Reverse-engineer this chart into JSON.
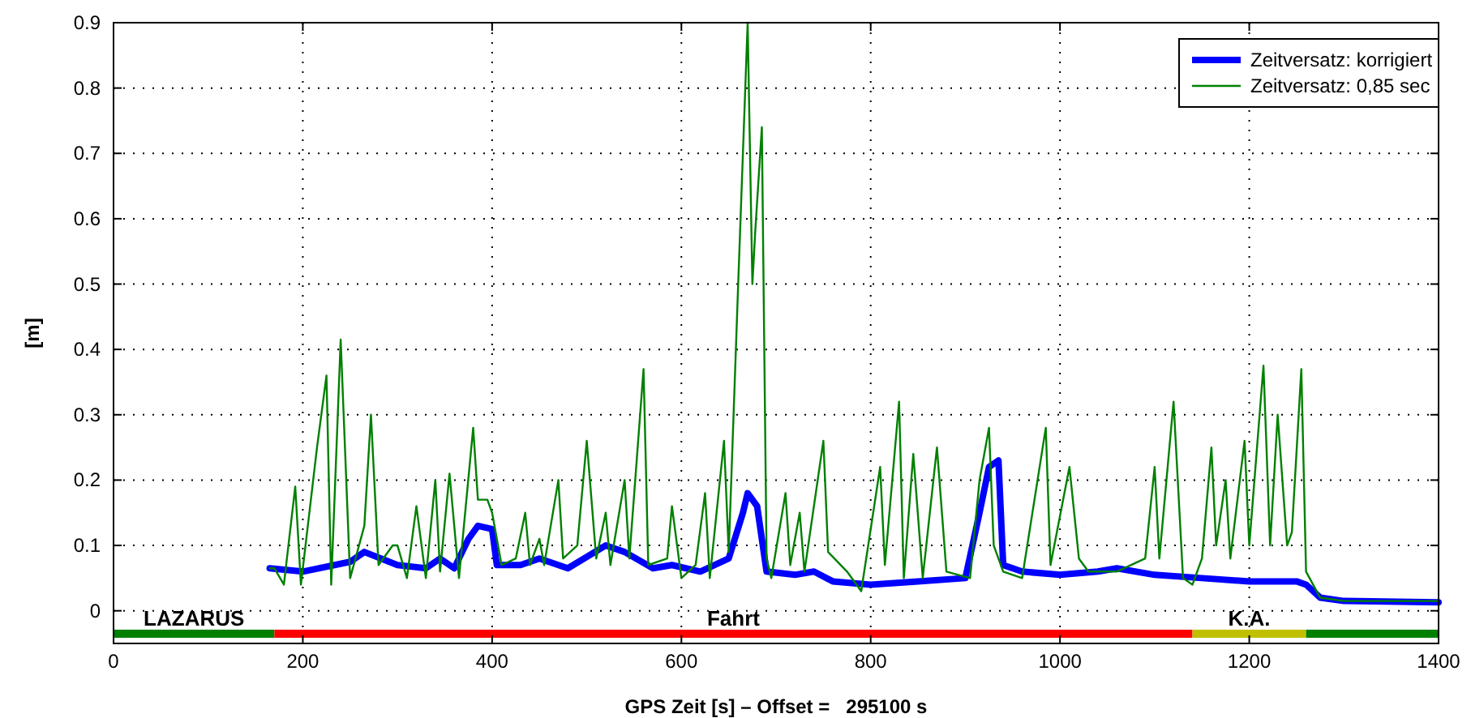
{
  "chart_data": {
    "type": "line",
    "xlabel": "GPS Zeit [s] – Offset =   295100 s",
    "ylabel": "[m]",
    "xlim": [
      0,
      1400
    ],
    "xticks": [
      0,
      200,
      400,
      600,
      800,
      1000,
      1200,
      1400
    ],
    "ylim": [
      -0.05,
      0.9
    ],
    "yticks": [
      0,
      0.1,
      0.2,
      0.3,
      0.4,
      0.5,
      0.6,
      0.7,
      0.8,
      0.9
    ],
    "grid": true,
    "legend": "top right",
    "series": [
      {
        "name": "Zeitversatz: korrigiert",
        "color": "#0000ff",
        "x": [
          165,
          200,
          250,
          265,
          300,
          330,
          345,
          360,
          375,
          385,
          400,
          405,
          430,
          450,
          480,
          520,
          540,
          570,
          590,
          620,
          650,
          665,
          670,
          680,
          690,
          720,
          740,
          760,
          800,
          850,
          900,
          915,
          925,
          935,
          940,
          960,
          1000,
          1040,
          1060,
          1100,
          1150,
          1200,
          1250,
          1260,
          1275,
          1300,
          1400
        ],
        "values": [
          0.065,
          0.06,
          0.075,
          0.09,
          0.07,
          0.065,
          0.08,
          0.065,
          0.11,
          0.13,
          0.125,
          0.07,
          0.07,
          0.08,
          0.065,
          0.1,
          0.09,
          0.065,
          0.07,
          0.06,
          0.08,
          0.15,
          0.18,
          0.16,
          0.06,
          0.055,
          0.06,
          0.045,
          0.04,
          0.045,
          0.05,
          0.15,
          0.22,
          0.23,
          0.07,
          0.06,
          0.055,
          0.06,
          0.065,
          0.055,
          0.05,
          0.045,
          0.045,
          0.04,
          0.02,
          0.015,
          0.013
        ]
      },
      {
        "name": "Zeitversatz: 0,85 sec",
        "color": "#008000",
        "x": [
          165,
          170,
          180,
          192,
          198,
          215,
          225,
          230,
          240,
          250,
          265,
          272,
          280,
          295,
          300,
          310,
          320,
          330,
          340,
          345,
          355,
          365,
          380,
          385,
          395,
          400,
          410,
          425,
          435,
          440,
          450,
          455,
          470,
          475,
          490,
          500,
          510,
          520,
          525,
          540,
          545,
          560,
          565,
          585,
          590,
          600,
          615,
          625,
          630,
          645,
          650,
          660,
          670,
          675,
          678,
          685,
          690,
          695,
          710,
          715,
          725,
          730,
          750,
          755,
          775,
          790,
          810,
          815,
          830,
          835,
          845,
          855,
          870,
          880,
          905,
          915,
          925,
          930,
          940,
          960,
          985,
          990,
          1010,
          1020,
          1030,
          1060,
          1090,
          1100,
          1105,
          1120,
          1130,
          1140,
          1150,
          1160,
          1165,
          1175,
          1180,
          1195,
          1200,
          1215,
          1222,
          1230,
          1240,
          1245,
          1255,
          1260,
          1275,
          1300,
          1400
        ],
        "values": [
          0.065,
          0.065,
          0.04,
          0.19,
          0.04,
          0.25,
          0.36,
          0.04,
          0.415,
          0.05,
          0.13,
          0.3,
          0.07,
          0.1,
          0.1,
          0.05,
          0.16,
          0.05,
          0.2,
          0.06,
          0.21,
          0.05,
          0.28,
          0.17,
          0.17,
          0.15,
          0.07,
          0.08,
          0.15,
          0.07,
          0.11,
          0.07,
          0.2,
          0.08,
          0.1,
          0.26,
          0.08,
          0.15,
          0.07,
          0.2,
          0.08,
          0.37,
          0.07,
          0.08,
          0.16,
          0.05,
          0.07,
          0.18,
          0.05,
          0.26,
          0.09,
          0.5,
          0.9,
          0.5,
          0.58,
          0.74,
          0.08,
          0.05,
          0.18,
          0.07,
          0.15,
          0.06,
          0.26,
          0.09,
          0.06,
          0.03,
          0.22,
          0.07,
          0.32,
          0.05,
          0.24,
          0.05,
          0.25,
          0.06,
          0.05,
          0.2,
          0.28,
          0.1,
          0.06,
          0.05,
          0.28,
          0.07,
          0.22,
          0.08,
          0.06,
          0.06,
          0.08,
          0.22,
          0.08,
          0.32,
          0.05,
          0.04,
          0.08,
          0.25,
          0.1,
          0.2,
          0.08,
          0.26,
          0.1,
          0.375,
          0.1,
          0.3,
          0.1,
          0.12,
          0.37,
          0.06,
          0.02,
          0.015,
          0.015
        ]
      },
      {
        "color": "#008000",
        "x": [
          0,
          170
        ],
        "values": [
          -0.035,
          -0.035
        ]
      },
      {
        "color": "#ff0000",
        "x": [
          170,
          1140
        ],
        "values": [
          -0.035,
          -0.035
        ]
      },
      {
        "color": "#c0c000",
        "x": [
          1140,
          1260
        ],
        "values": [
          -0.035,
          -0.035
        ]
      },
      {
        "color": "#008000",
        "x": [
          1260,
          1400
        ],
        "values": [
          -0.035,
          -0.035
        ]
      }
    ],
    "annotations": [
      {
        "text": "LAZARUS",
        "x": 85,
        "y": -0.035
      },
      {
        "text": "Fahrt",
        "x": 655,
        "y": -0.035
      },
      {
        "text": "K.A.",
        "x": 1200,
        "y": -0.035
      }
    ]
  }
}
